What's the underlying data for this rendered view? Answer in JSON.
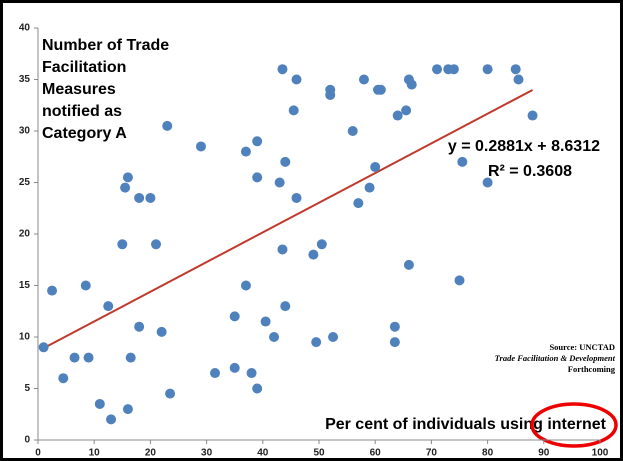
{
  "chart_data": {
    "type": "scatter",
    "title": [
      "Number of Trade",
      "Facilitation",
      "Measures",
      "notified as",
      "Category A"
    ],
    "x_label": "Per cent of individuals using internet",
    "annotations": [
      "y = 0.2881x + 8.6312",
      "R² = 0.3608"
    ],
    "source": [
      "Source: UNCTAD",
      "Trade Facilitation & Development",
      "Forthcoming"
    ],
    "trendline": {
      "slope": 0.2881,
      "intercept": 8.6312,
      "xrange": [
        1,
        88
      ],
      "color": "#c0392b"
    },
    "xlim": [
      0,
      100
    ],
    "xticks": [
      0,
      10,
      20,
      30,
      40,
      50,
      60,
      70,
      80,
      90,
      100
    ],
    "ylim": [
      0,
      40
    ],
    "yticks": [
      0,
      5,
      10,
      15,
      20,
      25,
      30,
      35,
      40
    ],
    "grid": false,
    "series": [
      {
        "color": "#4f81bd",
        "x": [
          1,
          2.5,
          4.5,
          6.5,
          8.5,
          9,
          11,
          12.5,
          13,
          15,
          15.5,
          16,
          16,
          16.5,
          18,
          18,
          20,
          21,
          22,
          23,
          23.5,
          29,
          31.5,
          35,
          35,
          37,
          37,
          38,
          39,
          39,
          39,
          40.5,
          42,
          43,
          43.5,
          43.5,
          44,
          44,
          45.5,
          46,
          46,
          49,
          49.5,
          50.5,
          52,
          52,
          52.5,
          56,
          57,
          58,
          59,
          60,
          60.5,
          61,
          63.5,
          63.5,
          64,
          65.5,
          66,
          66,
          66.5,
          71,
          73,
          74,
          75,
          75.5,
          80,
          80,
          85,
          85.5,
          88
        ],
        "values": [
          9,
          14.5,
          6,
          8,
          15,
          8,
          3.5,
          13,
          2,
          19,
          24.5,
          25.5,
          3,
          8,
          23.5,
          11,
          23.5,
          19,
          10.5,
          30.5,
          4.5,
          28.5,
          6.5,
          12,
          7,
          15,
          28,
          6.5,
          29,
          25.5,
          5,
          11.5,
          10,
          25,
          36,
          18.5,
          27,
          13,
          32,
          35,
          23.5,
          18,
          9.5,
          19,
          34,
          33.5,
          10,
          30,
          23,
          35,
          24.5,
          26.5,
          34,
          34,
          11,
          9.5,
          31.5,
          32,
          35,
          17,
          34.5,
          36,
          36,
          36,
          15.5,
          27,
          36,
          25,
          36,
          35,
          31.5
        ]
      }
    ]
  }
}
